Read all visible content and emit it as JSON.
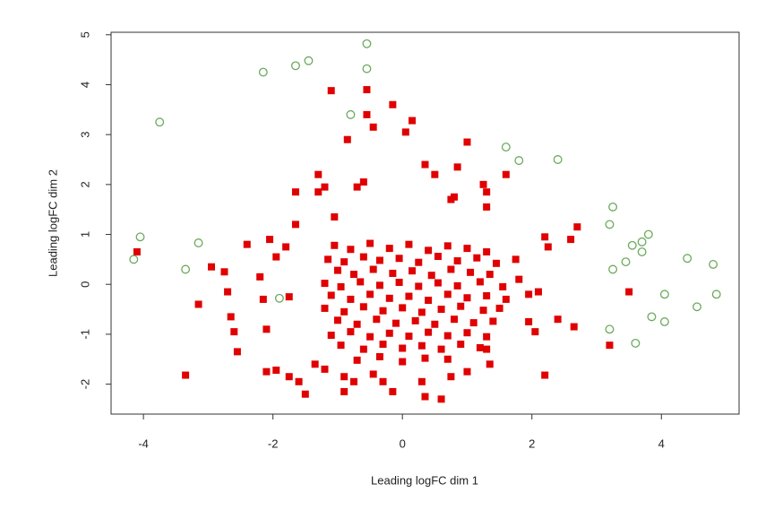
{
  "chart_data": {
    "type": "scatter",
    "x_label": "Leading logFC dim 1",
    "y_label": "Leading logFC dim 2",
    "xlim": [
      -4.5,
      5.2
    ],
    "ylim": [
      -2.6,
      5.05
    ],
    "xticks": [
      -4,
      -2,
      0,
      2,
      4
    ],
    "yticks": [
      -2,
      -1,
      0,
      1,
      2,
      3,
      4,
      5
    ],
    "series": [
      {
        "color": "#e00000",
        "marker": "square",
        "x": [
          -4.1,
          -3.35,
          -3.15,
          -2.95,
          -2.75,
          -2.7,
          -2.65,
          -2.6,
          -2.55,
          -2.4,
          -2.2,
          -2.15,
          -2.1,
          -2.1,
          -1.95,
          -2.05,
          -1.95,
          -1.8,
          -1.75,
          -1.75,
          -1.65,
          -1.65,
          -1.6,
          -1.5,
          -1.3,
          -1.3,
          -1.2,
          -1.1,
          -1.05,
          -0.85,
          -0.7,
          -0.6,
          -0.55,
          -0.55,
          -0.45,
          -0.15,
          0.05,
          0.15,
          0.35,
          0.5,
          0.75,
          0.8,
          0.85,
          1.0,
          1.25,
          1.3,
          1.3,
          1.6,
          1.75,
          1.8,
          1.95,
          1.95,
          2.05,
          2.1,
          2.2,
          2.2,
          2.25,
          2.4,
          2.6,
          2.65,
          2.7,
          3.2,
          3.5,
          1.35,
          1.3,
          1.0,
          0.75,
          0.6,
          0.35,
          -0.15,
          -0.3,
          -0.75,
          -0.9,
          -0.9,
          -1.35,
          -1.2,
          0.3,
          -0.45,
          -1.05,
          -0.8,
          -0.5,
          -0.2,
          0.1,
          0.4,
          0.7,
          1.0,
          1.3,
          -1.15,
          -0.9,
          -0.6,
          -0.35,
          -0.05,
          0.25,
          0.55,
          0.85,
          1.15,
          1.45,
          -1.0,
          -0.75,
          -0.45,
          -0.15,
          0.15,
          0.45,
          0.75,
          1.05,
          1.35,
          -1.2,
          -0.95,
          -0.65,
          -0.35,
          -0.05,
          0.25,
          0.55,
          0.85,
          1.2,
          1.55,
          -1.1,
          -0.8,
          -0.5,
          -0.2,
          0.1,
          0.4,
          0.7,
          1.0,
          1.3,
          1.6,
          -1.2,
          -0.9,
          -0.6,
          -0.3,
          0.0,
          0.3,
          0.6,
          0.9,
          1.25,
          1.5,
          -1.0,
          -0.7,
          -0.4,
          -0.1,
          0.2,
          0.5,
          0.8,
          1.1,
          1.4,
          -1.1,
          -0.8,
          -0.5,
          -0.2,
          0.1,
          0.4,
          0.7,
          1.0,
          1.3,
          -0.95,
          -0.6,
          -0.3,
          0.0,
          0.3,
          0.6,
          0.9,
          1.2,
          -0.7,
          -0.35,
          0.0,
          0.35,
          0.7
        ],
        "values": [
          0.65,
          -1.82,
          -0.4,
          0.35,
          0.25,
          -0.15,
          -0.65,
          -0.95,
          -1.35,
          0.8,
          0.15,
          -0.3,
          -0.9,
          -1.75,
          -1.72,
          0.9,
          0.55,
          0.75,
          -0.25,
          -1.85,
          1.2,
          1.85,
          -1.95,
          -2.2,
          1.85,
          2.2,
          1.95,
          3.88,
          1.35,
          2.9,
          1.95,
          2.05,
          3.9,
          3.4,
          3.15,
          3.6,
          3.05,
          3.28,
          2.4,
          2.2,
          1.7,
          1.75,
          2.35,
          2.85,
          2.0,
          1.85,
          1.55,
          2.2,
          0.5,
          0.1,
          -0.2,
          -0.75,
          -0.95,
          -0.15,
          0.95,
          -1.82,
          0.75,
          -0.7,
          0.9,
          -0.85,
          1.15,
          -1.22,
          -0.15,
          -1.6,
          -1.3,
          -1.75,
          -1.85,
          -2.3,
          -2.25,
          -2.15,
          -1.95,
          -1.95,
          -2.15,
          -1.85,
          -1.6,
          -1.7,
          -1.95,
          -1.8,
          0.78,
          0.7,
          0.82,
          0.72,
          0.8,
          0.68,
          0.77,
          0.72,
          0.65,
          0.5,
          0.45,
          0.55,
          0.48,
          0.52,
          0.44,
          0.56,
          0.47,
          0.53,
          0.42,
          0.28,
          0.2,
          0.3,
          0.22,
          0.27,
          0.18,
          0.3,
          0.24,
          0.2,
          0.02,
          -0.05,
          0.05,
          -0.02,
          0.04,
          -0.04,
          0.03,
          -0.03,
          0.05,
          -0.05,
          -0.22,
          -0.3,
          -0.2,
          -0.28,
          -0.24,
          -0.32,
          -0.2,
          -0.27,
          -0.23,
          -0.3,
          -0.48,
          -0.55,
          -0.45,
          -0.53,
          -0.47,
          -0.56,
          -0.5,
          -0.44,
          -0.52,
          -0.48,
          -0.72,
          -0.8,
          -0.7,
          -0.78,
          -0.73,
          -0.8,
          -0.7,
          -0.77,
          -0.74,
          -1.02,
          -0.95,
          -1.05,
          -0.98,
          -1.04,
          -0.96,
          -1.03,
          -0.97,
          -1.05,
          -1.22,
          -1.3,
          -1.2,
          -1.28,
          -1.23,
          -1.3,
          -1.2,
          -1.27,
          -1.52,
          -1.45,
          -1.55,
          -1.48,
          -1.5
        ]
      },
      {
        "color": "#6aaa5a",
        "marker": "circle",
        "x": [
          -4.15,
          -4.05,
          -3.75,
          -3.35,
          -3.15,
          -2.15,
          -1.65,
          -1.45,
          -0.55,
          -0.55,
          -0.8,
          1.6,
          1.8,
          2.4,
          3.25,
          3.2,
          3.25,
          3.45,
          3.55,
          3.7,
          3.8,
          3.7,
          4.4,
          4.8,
          4.05,
          4.85,
          3.85,
          4.05,
          4.55,
          3.2,
          3.6,
          -1.9
        ],
        "values": [
          0.5,
          0.95,
          3.25,
          0.3,
          0.83,
          4.25,
          4.38,
          4.48,
          4.82,
          4.32,
          3.4,
          2.75,
          2.48,
          2.5,
          1.55,
          1.2,
          0.3,
          0.45,
          0.78,
          0.85,
          1.0,
          0.65,
          0.52,
          0.4,
          -0.2,
          -0.2,
          -0.65,
          -0.75,
          -0.45,
          -0.9,
          -1.18,
          -0.28
        ]
      }
    ]
  }
}
